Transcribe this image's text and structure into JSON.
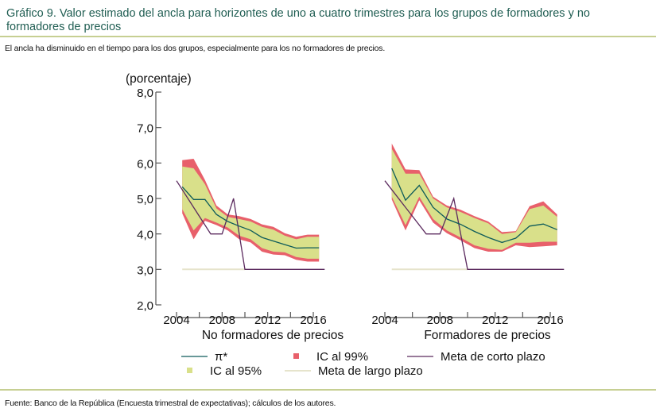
{
  "header": {
    "title": "Gráfico 9. Valor estimado del ancla para horizontes de uno a cuatro trimestres para los grupos de formadores y no formadores de precios",
    "subtitle": "El ancla ha disminuido en el tiempo para los dos grupos, especialmente para los no formadores de precios."
  },
  "footer": {
    "source": "Fuente: Banco de la República (Encuesta trimestral de expectativas); cálculos de los autores."
  },
  "colors": {
    "title": "#1f5d52",
    "ic99": "#e8606b",
    "ic95": "#d9e08a",
    "pi_star": "#0e5b5a",
    "meta_corto": "#5b2a5e",
    "meta_largo": "#e6e4cc",
    "axis": "#555555"
  },
  "chart_data": {
    "type": "area",
    "ylabel": "(porcentaje)",
    "ylim": [
      2.0,
      8.0
    ],
    "yticks": [
      "2,0",
      "3,0",
      "4,0",
      "5,0",
      "6,0",
      "7,0",
      "8,0"
    ],
    "ytick_values": [
      2,
      3,
      4,
      5,
      6,
      7,
      8
    ],
    "xticks": [
      "2004",
      "2008",
      "2012",
      "2016"
    ],
    "xtick_values": [
      2004,
      2006,
      2008,
      2010,
      2012,
      2014,
      2016
    ],
    "xlim": [
      2004,
      2017
    ],
    "grid": false,
    "legend": {
      "placement": "bottom",
      "items": [
        {
          "key": "pi_star",
          "label": "π*",
          "kind": "line"
        },
        {
          "key": "ic99",
          "label": "IC al 99%",
          "kind": "swatch"
        },
        {
          "key": "meta_corto",
          "label": "Meta de corto plazo",
          "kind": "line"
        },
        {
          "key": "ic95",
          "label": "IC al 95%",
          "kind": "swatch"
        },
        {
          "key": "meta_largo",
          "label": "Meta de largo plazo",
          "kind": "line"
        }
      ]
    },
    "panels": [
      {
        "name": "No formadores de precios",
        "x": [
          2004.5,
          2005.5,
          2006.5,
          2007.5,
          2008.5,
          2009.5,
          2010.5,
          2011.5,
          2012.5,
          2013.5,
          2014.5,
          2015.5,
          2016.5
        ],
        "pi_star": [
          5.33,
          4.97,
          4.97,
          4.55,
          4.35,
          4.22,
          4.1,
          3.9,
          3.8,
          3.7,
          3.6,
          3.61,
          3.61
        ],
        "ic95_upper": [
          5.9,
          5.85,
          5.4,
          4.72,
          4.48,
          4.42,
          4.35,
          4.2,
          4.12,
          3.95,
          3.85,
          3.92,
          3.92
        ],
        "ic95_lower": [
          4.7,
          4.1,
          4.45,
          4.32,
          4.18,
          3.95,
          3.85,
          3.6,
          3.5,
          3.48,
          3.35,
          3.3,
          3.3
        ],
        "ic99_upper": [
          6.08,
          6.12,
          5.52,
          4.8,
          4.55,
          4.5,
          4.42,
          4.27,
          4.2,
          4.02,
          3.92,
          3.98,
          3.98
        ],
        "ic99_lower": [
          4.58,
          3.85,
          4.37,
          4.25,
          4.1,
          3.85,
          3.76,
          3.5,
          3.42,
          3.4,
          3.27,
          3.22,
          3.22
        ],
        "meta_corto_x": [
          2004,
          2007,
          2008,
          2009,
          2010,
          2017
        ],
        "meta_corto": [
          5.5,
          4.0,
          4.0,
          5.0,
          3.0,
          3.0
        ],
        "meta_largo_x": [
          2004.5,
          2010
        ],
        "meta_largo": [
          3.0,
          3.0
        ]
      },
      {
        "name": "Formadores de precios",
        "x": [
          2004.5,
          2005.5,
          2006.5,
          2007.5,
          2008.5,
          2009.5,
          2010.5,
          2011.5,
          2012.5,
          2013.5,
          2014.5,
          2015.5,
          2016.5
        ],
        "pi_star": [
          5.85,
          4.95,
          5.37,
          4.75,
          4.42,
          4.27,
          4.07,
          3.9,
          3.76,
          3.88,
          4.22,
          4.28,
          4.12
        ],
        "ic95_upper": [
          6.4,
          5.7,
          5.7,
          5.0,
          4.75,
          4.62,
          4.45,
          4.3,
          4.0,
          4.05,
          4.7,
          4.8,
          4.48
        ],
        "ic95_lower": [
          5.05,
          4.25,
          5.05,
          4.42,
          4.1,
          3.9,
          3.68,
          3.58,
          3.55,
          3.75,
          3.75,
          3.78,
          3.78
        ],
        "ic99_upper": [
          6.55,
          5.82,
          5.8,
          5.05,
          4.8,
          4.68,
          4.5,
          4.35,
          4.05,
          4.08,
          4.78,
          4.92,
          4.55
        ],
        "ic99_lower": [
          4.97,
          4.1,
          4.95,
          4.32,
          4.02,
          3.82,
          3.6,
          3.5,
          3.5,
          3.68,
          3.63,
          3.65,
          3.68
        ],
        "meta_corto_x": [
          2004,
          2007,
          2008,
          2009,
          2010,
          2017
        ],
        "meta_corto": [
          5.5,
          4.0,
          4.0,
          5.0,
          3.0,
          3.0
        ],
        "meta_largo_x": [
          2004.5,
          2010
        ],
        "meta_largo": [
          3.0,
          3.0
        ]
      }
    ]
  }
}
